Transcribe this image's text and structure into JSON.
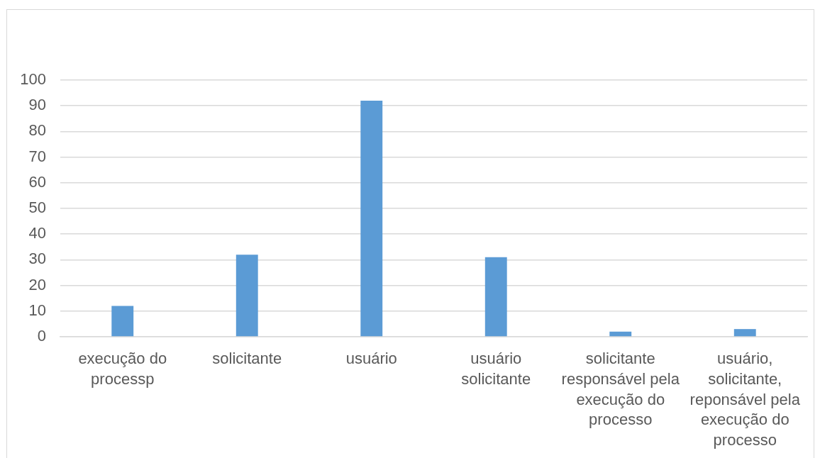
{
  "chart_data": {
    "type": "bar",
    "categories": [
      "execução do processp",
      "solicitante",
      "usuário",
      "usuário solicitante",
      "solicitante responsável pela execução do processo",
      "usuário, solicitante, reponsável pela execução do processo"
    ],
    "values": [
      12,
      32,
      92,
      31,
      2,
      3
    ],
    "color": "#5b9bd5",
    "ylim": [
      0,
      100
    ],
    "yticks": [
      0,
      10,
      20,
      30,
      40,
      50,
      60,
      70,
      80,
      90,
      100
    ],
    "grid": "y"
  }
}
